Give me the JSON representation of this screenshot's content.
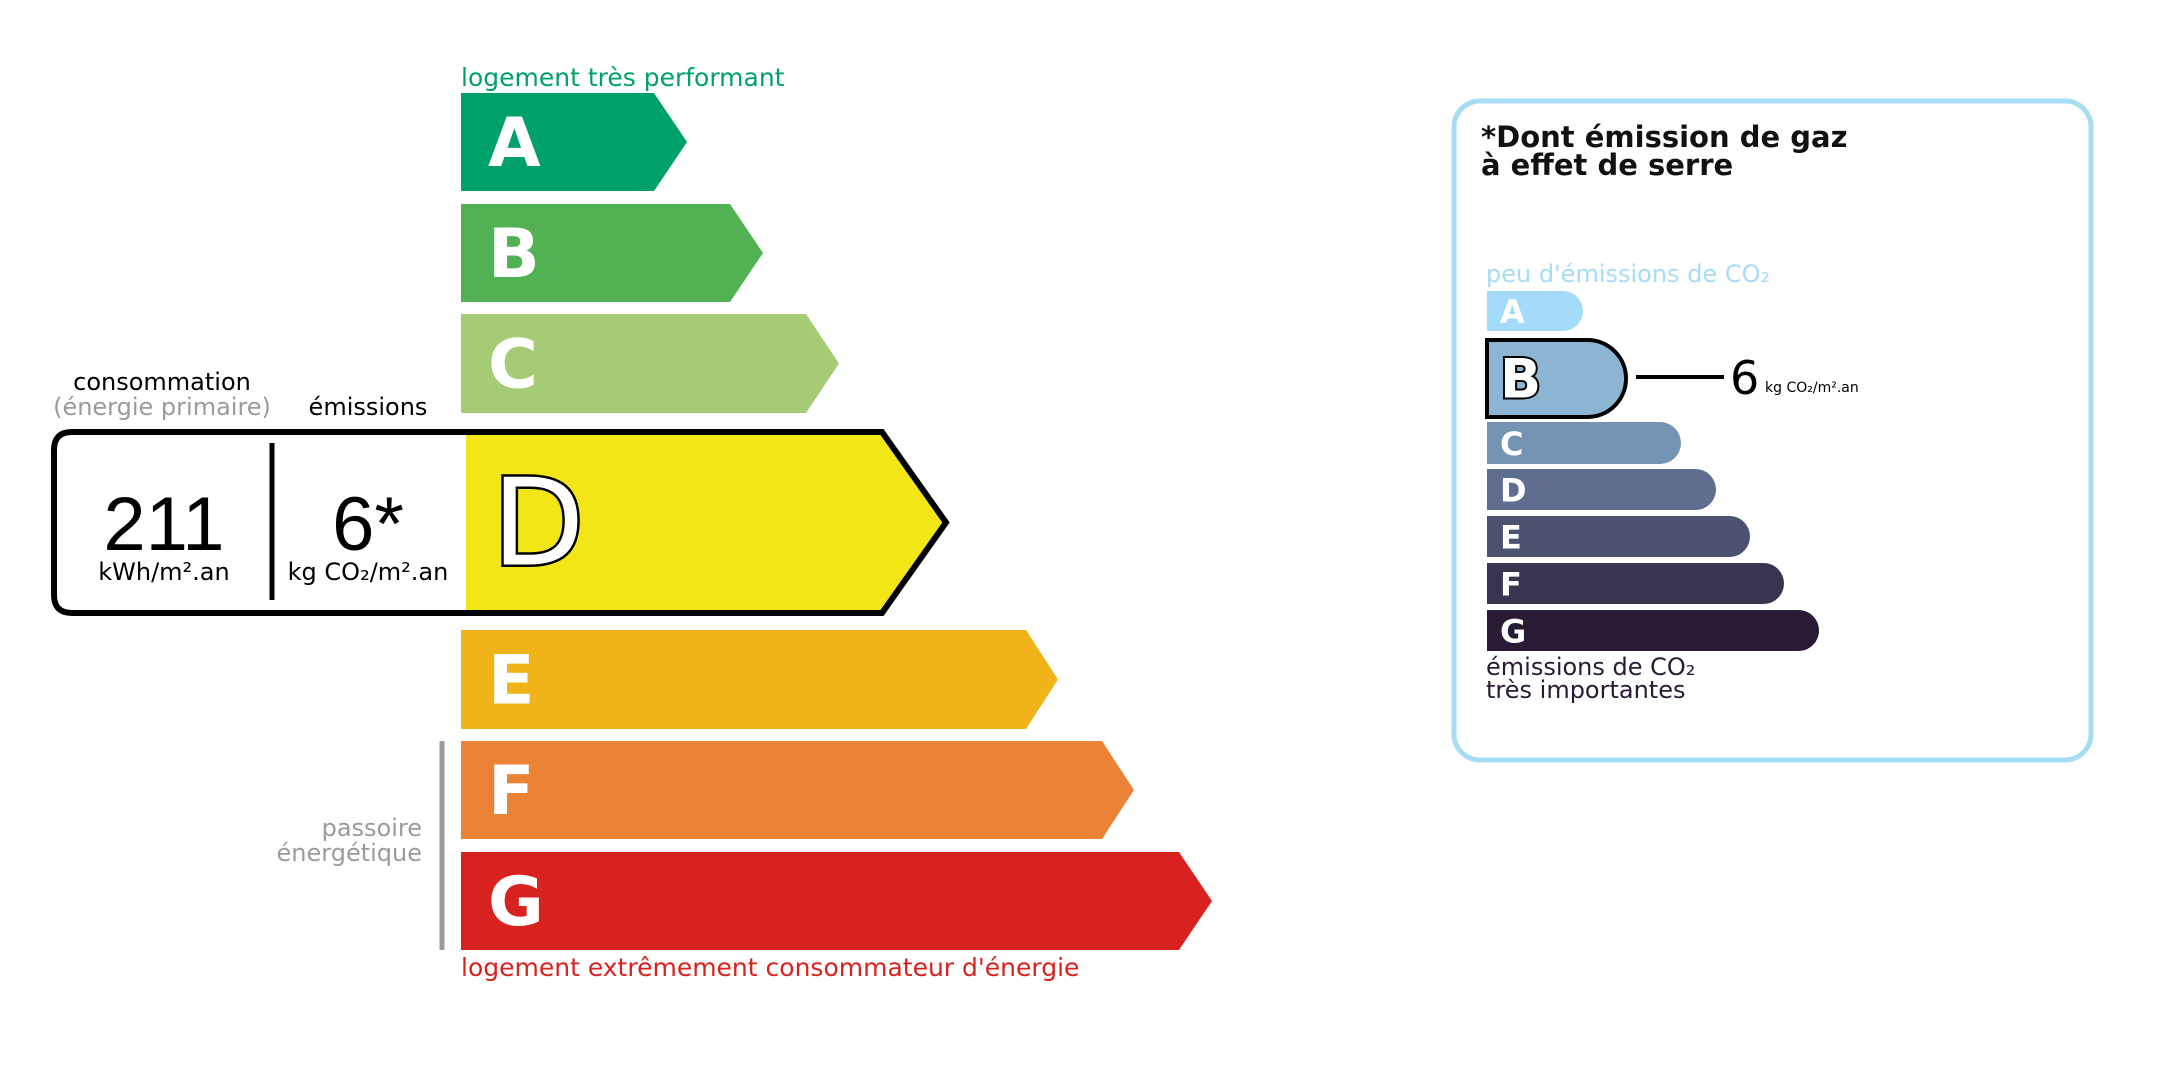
{
  "energy": {
    "top_label": "logement très performant",
    "bottom_label": "logement extrêmement consommateur d'énergie",
    "passoire_line1": "passoire",
    "passoire_line2": "énergétique",
    "consumption_label": "consommation",
    "consumption_sub": "(énergie primaire)",
    "emissions_label": "émissions",
    "consumption_value": "211",
    "consumption_unit": "kWh/m².an",
    "emissions_value": "6*",
    "emissions_unit": "kg CO₂/m².an",
    "current_class": "D",
    "classes": [
      {
        "letter": "A",
        "color": "#00a06d"
      },
      {
        "letter": "B",
        "color": "#52b153"
      },
      {
        "letter": "C",
        "color": "#a5cc74"
      },
      {
        "letter": "D",
        "color": "#f2e617"
      },
      {
        "letter": "E",
        "color": "#f0b41a"
      },
      {
        "letter": "F",
        "color": "#eb8235"
      },
      {
        "letter": "G",
        "color": "#d7221f"
      }
    ],
    "top_label_color": "#00a06d",
    "bottom_label_color": "#d7221f"
  },
  "ges": {
    "title_line1": "*Dont émission de gaz",
    "title_line2": "à effet de serre",
    "top_label": "peu d'émissions de CO₂",
    "bottom_line1": "émissions de CO₂",
    "bottom_line2": "très importantes",
    "current_class": "B",
    "value": "6",
    "unit": "kg CO₂/m².an",
    "border_color": "#a6dcf5",
    "classes": [
      {
        "letter": "A",
        "color": "#a4dbf8"
      },
      {
        "letter": "B",
        "color": "#8cb4d3"
      },
      {
        "letter": "C",
        "color": "#7593b2"
      },
      {
        "letter": "D",
        "color": "#5f6d8e"
      },
      {
        "letter": "E",
        "color": "#4d5271"
      },
      {
        "letter": "F",
        "color": "#393551"
      },
      {
        "letter": "G",
        "color": "#281b35"
      }
    ]
  }
}
